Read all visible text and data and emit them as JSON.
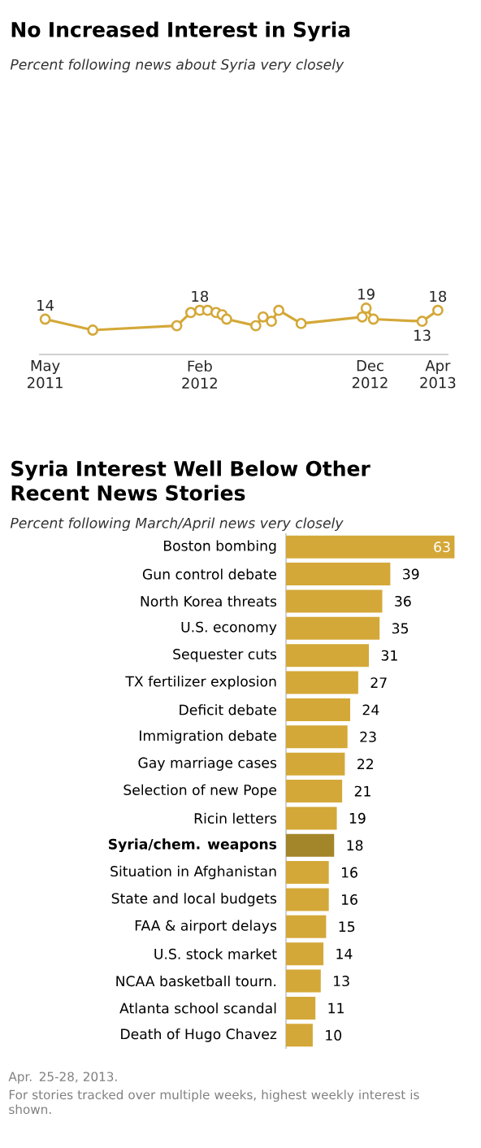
{
  "chart_data": [
    {
      "type": "line",
      "title": "No Increased Interest in Syria",
      "subtitle": "Percent following news about Syria very closely",
      "x": [
        "2011-05-01",
        "2011-07-25",
        "2011-12-22",
        "2012-01-16",
        "2012-02-01",
        "2012-02-15",
        "2012-03-01",
        "2012-03-12",
        "2012-03-20",
        "2012-05-11",
        "2012-05-24",
        "2012-06-08",
        "2012-06-21",
        "2012-07-31",
        "2012-11-17",
        "2012-11-24",
        "2012-12-07",
        "2013-03-04",
        "2013-04-01"
      ],
      "values": [
        14,
        9,
        11,
        17,
        18,
        18,
        17,
        16,
        14,
        11,
        15,
        13,
        18,
        12,
        15,
        19,
        14,
        13,
        18
      ],
      "value_labels": [
        "14",
        null,
        null,
        null,
        "18",
        null,
        null,
        null,
        null,
        null,
        null,
        null,
        null,
        null,
        null,
        "19",
        null,
        "13",
        "18"
      ],
      "color": "#d4a838",
      "marker": "circle",
      "xlim": [
        "2011-04-20",
        "2013-04-20"
      ],
      "xticks": [
        {
          "value": "2011-05-01",
          "label": "May 2011"
        },
        {
          "value": "2012-02-01",
          "label": "Feb 2012"
        },
        {
          "value": "2012-12-01",
          "label": "Dec 2012"
        },
        {
          "value": "2013-04-01",
          "label": "Apr 2013"
        }
      ],
      "tick_labels": "x"
    },
    {
      "type": "bar",
      "orientation": "horizontal",
      "title": "Syria Interest Well Below Other Recent News Stories",
      "subtitle": "Percent following March/April news very closely",
      "categories": [
        "Boston bombing",
        "Gun control debate",
        "North Korea threats",
        "U.S. economy",
        "Sequester cuts",
        "TX fertilizer explosion",
        "Deficit debate",
        "Immigration debate",
        "Gay marriage cases",
        "Selection of new Pope",
        "Ricin letters",
        "**Syria/chem. weapons**",
        "Situation in Afghanistan",
        "State and local budgets",
        "FAA & airport delays",
        "U.S. stock market",
        "NCAA basketball tourn.",
        "Atlanta school scandal",
        "Death of Hugo Chavez"
      ],
      "values": [
        63,
        39,
        36,
        35,
        31,
        27,
        24,
        23,
        22,
        21,
        19,
        18,
        16,
        16,
        15,
        14,
        13,
        11,
        10
      ],
      "colors": [
        "#d4a838",
        "#d4a838",
        "#d4a838",
        "#d4a838",
        "#d4a838",
        "#d4a838",
        "#d4a838",
        "#d4a838",
        "#d4a838",
        "#d4a838",
        "#d4a838",
        "#a3852a",
        "#d4a838",
        "#d4a838",
        "#d4a838",
        "#d4a838",
        "#d4a838",
        "#d4a838",
        "#d4a838"
      ],
      "data_labels": true,
      "xlim": [
        0,
        65
      ],
      "tick_labels": "y",
      "annotations": [
        "Apr. 25-28, 2013.",
        "For stories tracked over multiple weeks, highest weekly interest is shown."
      ]
    }
  ]
}
